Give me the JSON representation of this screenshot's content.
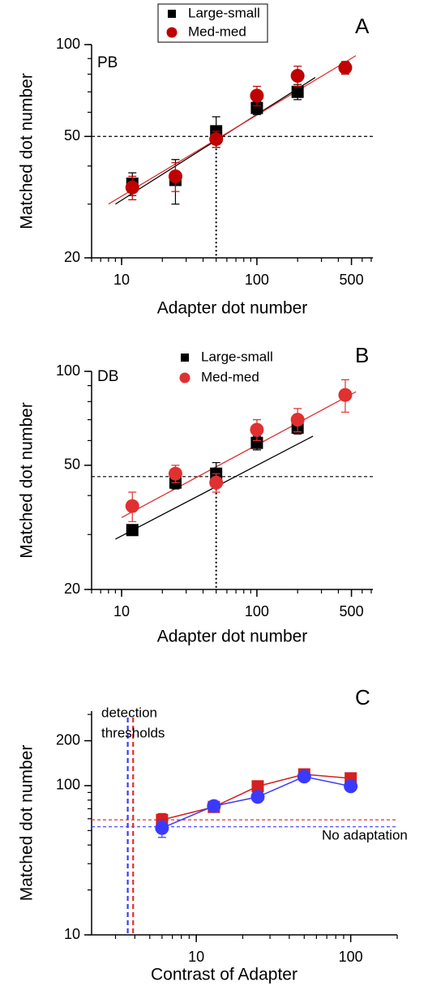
{
  "chart_data": [
    {
      "type": "scatter",
      "dataset_label": "PB",
      "panel_label": "A",
      "xlabel": "Adapter dot number",
      "ylabel": "Matched dot number",
      "log_x": true,
      "log_y": true,
      "xlim": [
        6,
        720
      ],
      "ylim": [
        20,
        100
      ],
      "xticks": [
        10,
        100,
        500
      ],
      "yticks": [
        20,
        50,
        100
      ],
      "legend": {
        "position": "top",
        "box": true
      },
      "series": [
        {
          "name": "Large-small",
          "color": "#000000",
          "marker": "square",
          "x": [
            12,
            25,
            50,
            100,
            200
          ],
          "values": [
            35,
            36,
            52,
            62,
            70
          ],
          "errors": [
            3,
            6,
            6,
            3,
            4
          ]
        },
        {
          "name": "Med-med",
          "color": "#c00000",
          "marker": "circle",
          "x": [
            12,
            25,
            50,
            100,
            200,
            450
          ],
          "values": [
            34,
            37,
            49,
            68,
            79,
            84
          ],
          "errors": [
            3,
            4,
            3,
            5,
            6,
            4
          ]
        }
      ],
      "fits": [
        {
          "color": "#000000",
          "x": [
            9,
            270
          ],
          "values": [
            30,
            78
          ]
        },
        {
          "color": "#e03030",
          "x": [
            8,
            540
          ],
          "values": [
            30,
            92
          ]
        }
      ],
      "hlines": [
        {
          "value": 50,
          "color": "#000000"
        }
      ],
      "vlines": [
        {
          "value": 50,
          "color": "#000000",
          "style": "dotted"
        }
      ]
    },
    {
      "type": "scatter",
      "dataset_label": "DB",
      "panel_label": "B",
      "xlabel": "Adapter dot number",
      "ylabel": "Matched dot number",
      "log_x": true,
      "log_y": true,
      "xlim": [
        6,
        720
      ],
      "ylim": [
        20,
        100
      ],
      "xticks": [
        10,
        100,
        500
      ],
      "yticks": [
        20,
        50,
        100
      ],
      "legend": {
        "position": "top",
        "box": false
      },
      "series": [
        {
          "name": "Large-small",
          "color": "#000000",
          "marker": "square",
          "x": [
            12,
            25,
            50,
            100,
            200
          ],
          "values": [
            31,
            44,
            47,
            59,
            66
          ],
          "errors": [
            1,
            2,
            4,
            3,
            3
          ]
        },
        {
          "name": "Med-med",
          "color": "#e03030",
          "marker": "circle",
          "x": [
            12,
            25,
            50,
            100,
            200,
            450
          ],
          "values": [
            37,
            47,
            44,
            65,
            70,
            84
          ],
          "errors": [
            4,
            3,
            3,
            5,
            6,
            10
          ]
        }
      ],
      "fits": [
        {
          "color": "#000000",
          "x": [
            9,
            260
          ],
          "values": [
            29,
            62
          ]
        },
        {
          "color": "#e03030",
          "x": [
            10,
            540
          ],
          "values": [
            34,
            86
          ]
        }
      ],
      "hlines": [
        {
          "value": 46,
          "color": "#000000"
        }
      ],
      "vlines": [
        {
          "value": 50,
          "color": "#000000",
          "style": "dotted"
        }
      ]
    },
    {
      "type": "scatter",
      "panel_label": "C",
      "xlabel": "Contrast of Adapter",
      "ylabel": "Matched dot number",
      "annotations": [
        "detection",
        "thresholds",
        "No adaptation"
      ],
      "log_x": true,
      "log_y": true,
      "xlim": [
        2.1,
        200
      ],
      "ylim": [
        10,
        316
      ],
      "xticks": [
        10,
        100
      ],
      "yticks": [
        10,
        100,
        200
      ],
      "series": [
        {
          "color": "#d42020",
          "marker": "square",
          "line": true,
          "x": [
            6,
            13,
            25,
            50,
            100
          ],
          "values": [
            59,
            72,
            99,
            119,
            112
          ],
          "errors": [
            6,
            4,
            4,
            3,
            7
          ]
        },
        {
          "color": "#3a3aff",
          "marker": "circle",
          "line": true,
          "x": [
            6,
            13,
            25,
            50,
            100
          ],
          "values": [
            52,
            73,
            84,
            115,
            99
          ],
          "errors": [
            7,
            3,
            3,
            3,
            3
          ]
        }
      ],
      "hlines": [
        {
          "value": 59,
          "color": "#e03030"
        },
        {
          "value": 53,
          "color": "#3a3aff"
        }
      ],
      "vlines": [
        {
          "value": 3.6,
          "color": "#3a3aff",
          "style": "dashed"
        },
        {
          "value": 3.9,
          "color": "#e03030",
          "style": "dashed"
        }
      ]
    }
  ]
}
